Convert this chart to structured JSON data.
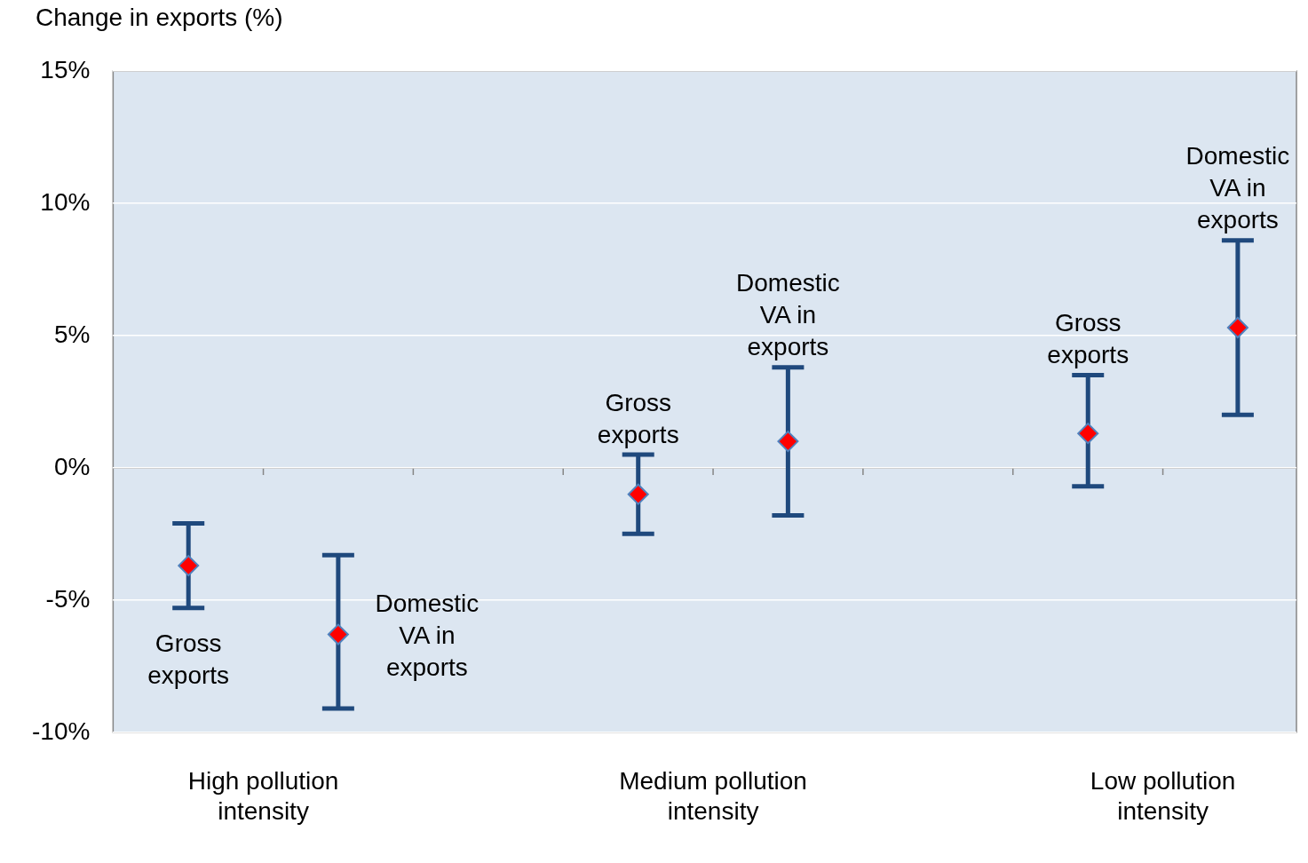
{
  "chart_data": {
    "type": "scatter",
    "ylabel": "Change in exports (%)",
    "categories": [
      "High pollution intensity",
      "Medium pollution intensity",
      "Low pollution intensity"
    ],
    "series": [
      {
        "name": "Gross exports",
        "color": "#ff0000",
        "values": [
          -3.7,
          -1.0,
          1.3
        ],
        "errors": [
          [
            -5.3,
            -2.1
          ],
          [
            -2.5,
            0.5
          ],
          [
            -0.7,
            3.5
          ]
        ]
      },
      {
        "name": "Domestic VA in exports",
        "color": "#ff0000",
        "values": [
          -6.3,
          1.0,
          5.3
        ],
        "errors": [
          [
            -9.1,
            -3.3
          ],
          [
            -1.8,
            3.8
          ],
          [
            2.0,
            8.6
          ]
        ]
      }
    ],
    "ylim": [
      -10,
      15
    ],
    "yticks": [
      {
        "value": -10,
        "label": "-10%"
      },
      {
        "value": -5,
        "label": "-5%"
      },
      {
        "value": 0,
        "label": "0%"
      },
      {
        "value": 5,
        "label": "5%"
      },
      {
        "value": 10,
        "label": "10%"
      },
      {
        "value": 15,
        "label": "15%"
      }
    ],
    "grid": "y",
    "legend": false,
    "marker": "diamond"
  }
}
